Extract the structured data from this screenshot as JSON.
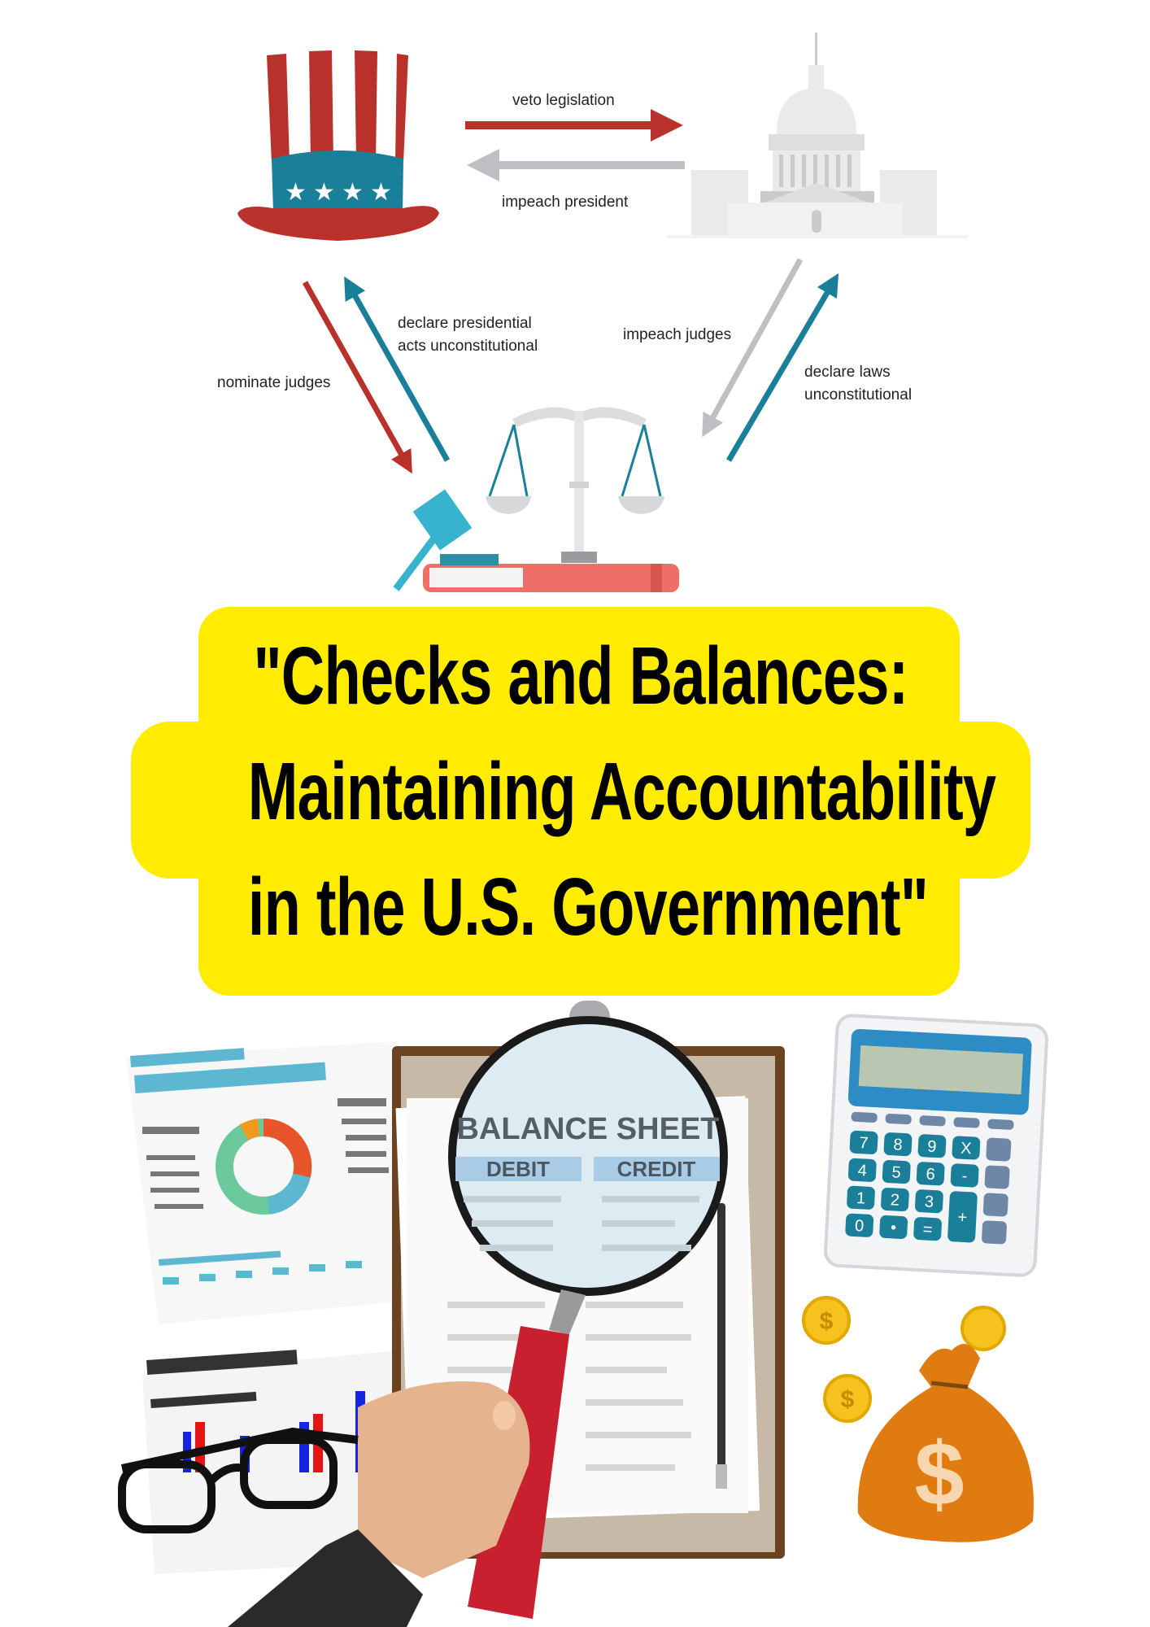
{
  "diagram": {
    "labels": {
      "veto": "veto legislation",
      "impeach_president": "impeach president",
      "declare_presidential_1": "declare presidential",
      "declare_presidential_2": "acts unconstitutional",
      "nominate_judges": "nominate judges",
      "impeach_judges": "impeach judges",
      "declare_laws_1": "declare laws",
      "declare_laws_2": "unconstitutional"
    },
    "colors": {
      "red": "#B8312A",
      "teal": "#1A7F98",
      "gray": "#BDBFC2",
      "banner": "#FFEC00"
    },
    "icons": [
      "uncle-sam-hat-icon",
      "capitol-building-icon",
      "scales-of-justice-icon",
      "gavel-icon",
      "book-icon"
    ]
  },
  "title": {
    "line1": "\"Checks and Balances:",
    "line2": "Maintaining Accountability",
    "line3": "in the U.S. Government\""
  },
  "illustration": {
    "sheet_title": "BALANCE SHEET",
    "col_debit": "DEBIT",
    "col_credit": "CREDIT",
    "calculator_keys": [
      "7",
      "8",
      "9",
      "X",
      "4",
      "5",
      "6",
      "-",
      "1",
      "2",
      "3",
      "+",
      "0",
      "•",
      "="
    ],
    "currency": "$"
  }
}
